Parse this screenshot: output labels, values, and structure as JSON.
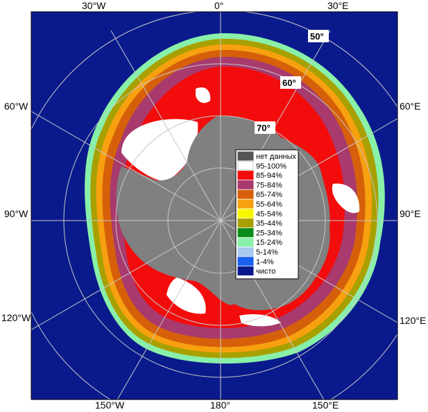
{
  "map": {
    "longitude_labels": {
      "top_left": "30°W",
      "top_center": "0°",
      "top_right": "30°E",
      "left_upper": "60°W",
      "right_upper": "60°E",
      "left_middle": "90°W",
      "right_middle": "90°E",
      "left_lower": "120°W",
      "right_lower": "120°E",
      "bottom_left": "150°W",
      "bottom_center": "180°",
      "bottom_right": "150°E"
    },
    "latitude_labels": [
      "50°",
      "60°",
      "70°"
    ],
    "colors": {
      "ocean": "#0a1a8c",
      "land": "#808080",
      "grid": "#c8c8c8"
    }
  },
  "legend": {
    "items": [
      {
        "label": "нет данных",
        "color": "#555555"
      },
      {
        "label": "95-100%",
        "color": "#ffffff"
      },
      {
        "label": "85-94%",
        "color": "#f20c0c"
      },
      {
        "label": "75-84%",
        "color": "#a83a6e"
      },
      {
        "label": "65-74%",
        "color": "#d6600a"
      },
      {
        "label": "55-64%",
        "color": "#f7a010"
      },
      {
        "label": "45-54%",
        "color": "#f7f700"
      },
      {
        "label": "35-44%",
        "color": "#a8a000"
      },
      {
        "label": "25-34%",
        "color": "#0a8c1a"
      },
      {
        "label": "15-24%",
        "color": "#88f0a8"
      },
      {
        "label": "5-14%",
        "color": "#a8c8f0"
      },
      {
        "label": "1-4%",
        "color": "#1a60f0"
      },
      {
        "label": "чисто",
        "color": "#0a1a8c"
      }
    ]
  }
}
